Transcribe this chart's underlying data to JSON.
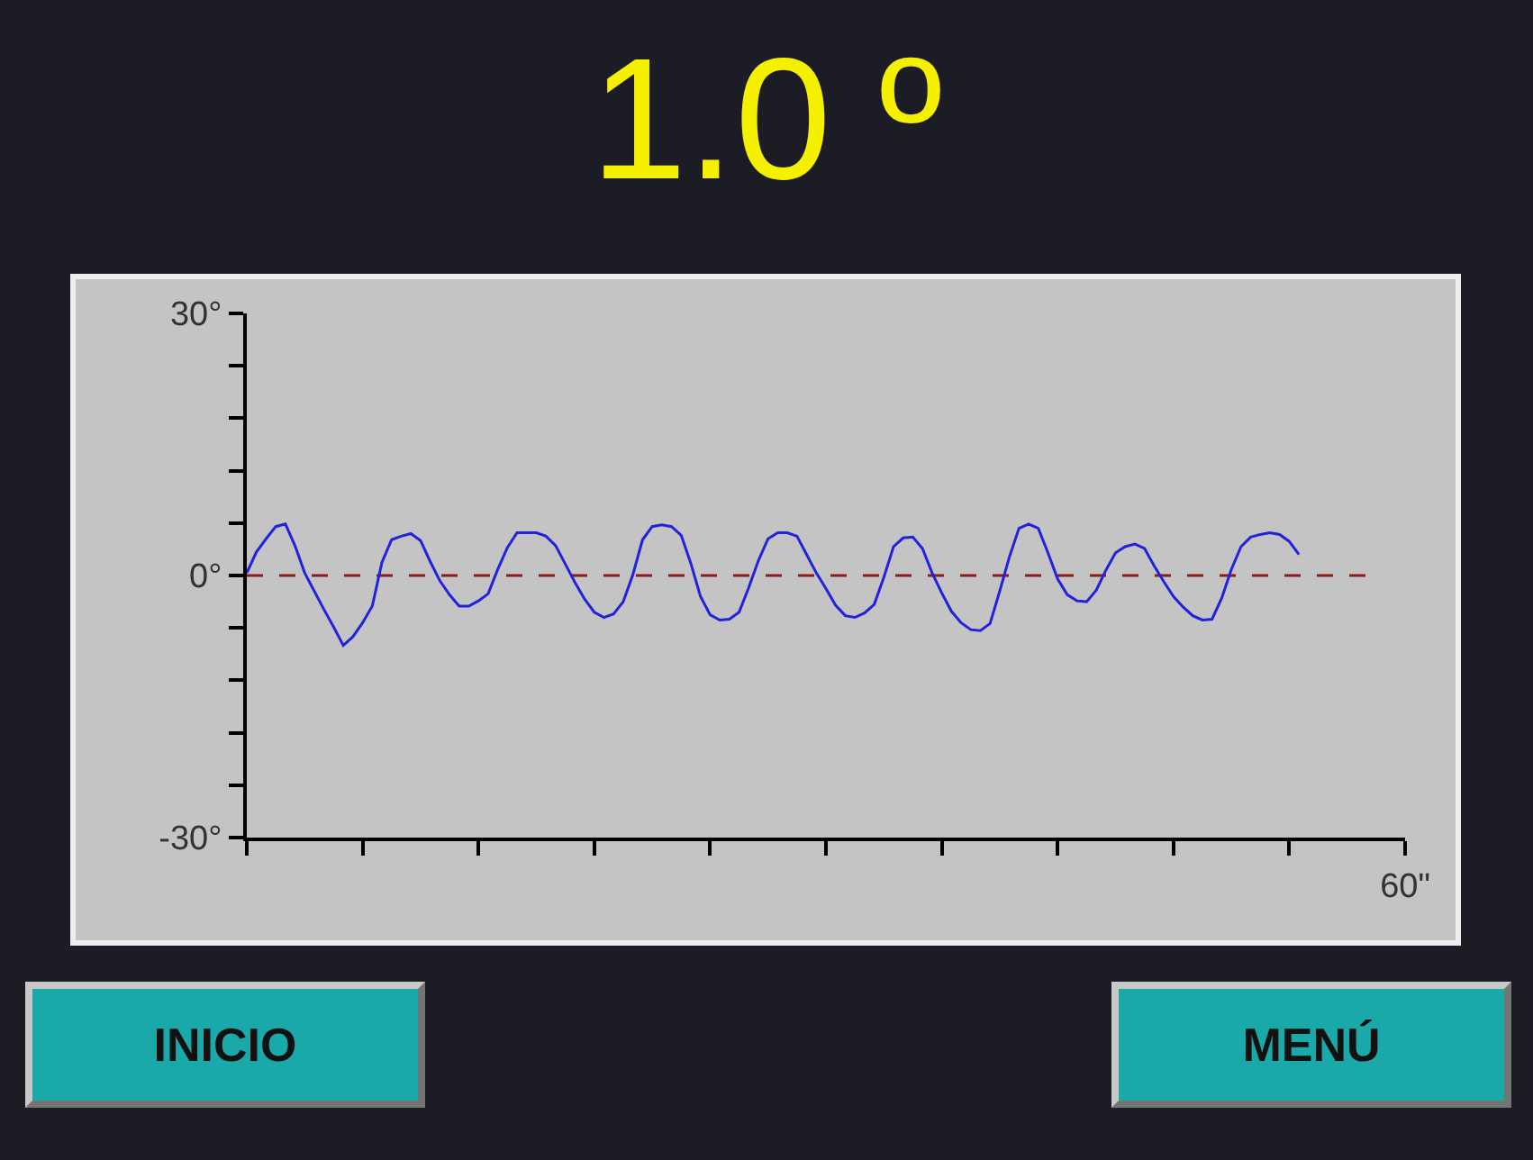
{
  "chart_data": {
    "type": "line",
    "title": "1.0 º",
    "annotations": [
      "INICIO",
      "MENÚ"
    ],
    "categories": [
      null,
      null,
      null,
      null,
      null,
      null,
      null,
      null,
      null,
      null,
      null,
      null,
      null,
      null,
      null,
      null,
      null,
      null,
      null,
      null,
      null,
      null,
      null,
      null,
      null,
      null,
      null,
      null,
      null,
      null,
      null,
      null,
      null,
      null,
      null,
      null,
      null,
      null,
      null,
      null,
      null,
      null,
      null,
      null,
      null,
      null,
      null,
      null,
      null,
      null,
      null,
      null,
      null,
      null,
      null,
      null,
      null,
      null,
      null,
      null,
      null,
      null,
      null,
      null,
      null,
      null,
      null,
      null,
      null,
      null,
      null,
      null,
      null,
      null,
      null,
      null,
      null,
      null,
      null,
      null,
      null,
      null,
      null,
      null,
      null,
      null,
      null,
      null,
      null,
      null,
      null,
      null,
      null,
      null,
      null,
      null,
      null,
      null,
      null,
      null,
      null,
      null,
      null,
      null,
      null,
      null,
      null,
      null,
      null,
      null,
      null,
      null,
      null,
      null,
      null,
      null,
      null,
      null,
      null,
      null,
      "60\""
    ],
    "ylim": [
      -30,
      30
    ],
    "yticks": [
      {
        "value": -30,
        "label": "-30°"
      },
      {
        "value": -24,
        "label": null
      },
      {
        "value": -18,
        "label": null
      },
      {
        "value": -12,
        "label": null
      },
      {
        "value": -6,
        "label": null
      },
      {
        "value": 0,
        "label": "0°"
      },
      {
        "value": 6,
        "label": null
      },
      {
        "value": 12,
        "label": null
      },
      {
        "value": 18,
        "label": null
      },
      {
        "value": 24,
        "label": null
      },
      {
        "value": 30,
        "label": "30°"
      }
    ],
    "grid": false,
    "marker": "none",
    "series": [
      {
        "color": "#8b1a1a",
        "line_style": "dashed",
        "values": [
          0,
          0,
          0,
          0,
          0,
          0,
          0,
          0,
          0,
          0,
          0,
          0,
          0,
          0,
          0,
          0,
          0,
          0,
          0,
          0,
          0,
          0,
          0,
          0,
          0,
          0,
          0,
          0,
          0,
          0,
          0,
          0,
          0,
          0,
          0,
          0,
          0,
          0,
          0,
          0,
          0,
          0,
          0,
          0,
          0,
          0,
          0,
          0,
          0,
          0,
          0,
          0,
          0,
          0,
          0,
          0,
          0,
          0,
          0,
          0,
          0,
          0,
          0,
          0,
          0,
          0,
          0,
          0,
          0,
          0,
          0,
          0,
          0,
          0,
          0,
          0,
          0,
          0,
          0,
          0,
          0,
          0,
          0,
          0,
          0,
          0,
          0,
          0,
          0,
          0,
          0,
          0,
          0,
          0,
          0,
          0,
          0,
          0,
          0,
          0,
          0,
          0,
          0,
          0,
          0,
          0,
          0,
          0,
          0,
          0,
          0,
          0,
          0,
          0,
          0,
          0,
          0,
          null,
          null,
          null,
          null
        ]
      },
      {
        "color": "#2222dd",
        "line_style": "solid",
        "values": [
          0.3,
          2.7,
          4.2,
          5.6,
          5.9,
          3.4,
          0.3,
          -1.8,
          -3.9,
          -5.9,
          -8.0,
          -7.0,
          -5.4,
          -3.5,
          1.5,
          4.1,
          4.5,
          4.8,
          4.0,
          1.6,
          -0.6,
          -2.2,
          -3.5,
          -3.5,
          -2.9,
          -2.1,
          0.7,
          3.2,
          4.9,
          4.9,
          4.9,
          4.5,
          3.4,
          1.3,
          -0.8,
          -2.7,
          -4.2,
          -4.8,
          -4.4,
          -3.0,
          0.1,
          4.1,
          5.6,
          5.8,
          5.6,
          4.6,
          1.4,
          -2.4,
          -4.5,
          -5.1,
          -5.0,
          -4.2,
          -1.4,
          1.7,
          4.2,
          4.9,
          4.9,
          4.5,
          2.4,
          0.3,
          -1.5,
          -3.4,
          -4.6,
          -4.8,
          -4.3,
          -3.3,
          -0.2,
          3.3,
          4.3,
          4.4,
          3.1,
          0.3,
          -2.0,
          -4.1,
          -5.4,
          -6.2,
          -6.3,
          -5.5,
          -1.8,
          2.1,
          5.4,
          5.9,
          5.4,
          2.6,
          -0.4,
          -2.2,
          -2.9,
          -3.0,
          -1.7,
          0.6,
          2.6,
          3.3,
          3.6,
          3.1,
          1.1,
          -0.7,
          -2.4,
          -3.6,
          -4.6,
          -5.1,
          -5.0,
          -2.6,
          0.7,
          3.3,
          4.4,
          4.7,
          4.9,
          4.7,
          3.9,
          2.4,
          null,
          null,
          null,
          null,
          null,
          null,
          null,
          null,
          null,
          null,
          null
        ]
      }
    ]
  }
}
